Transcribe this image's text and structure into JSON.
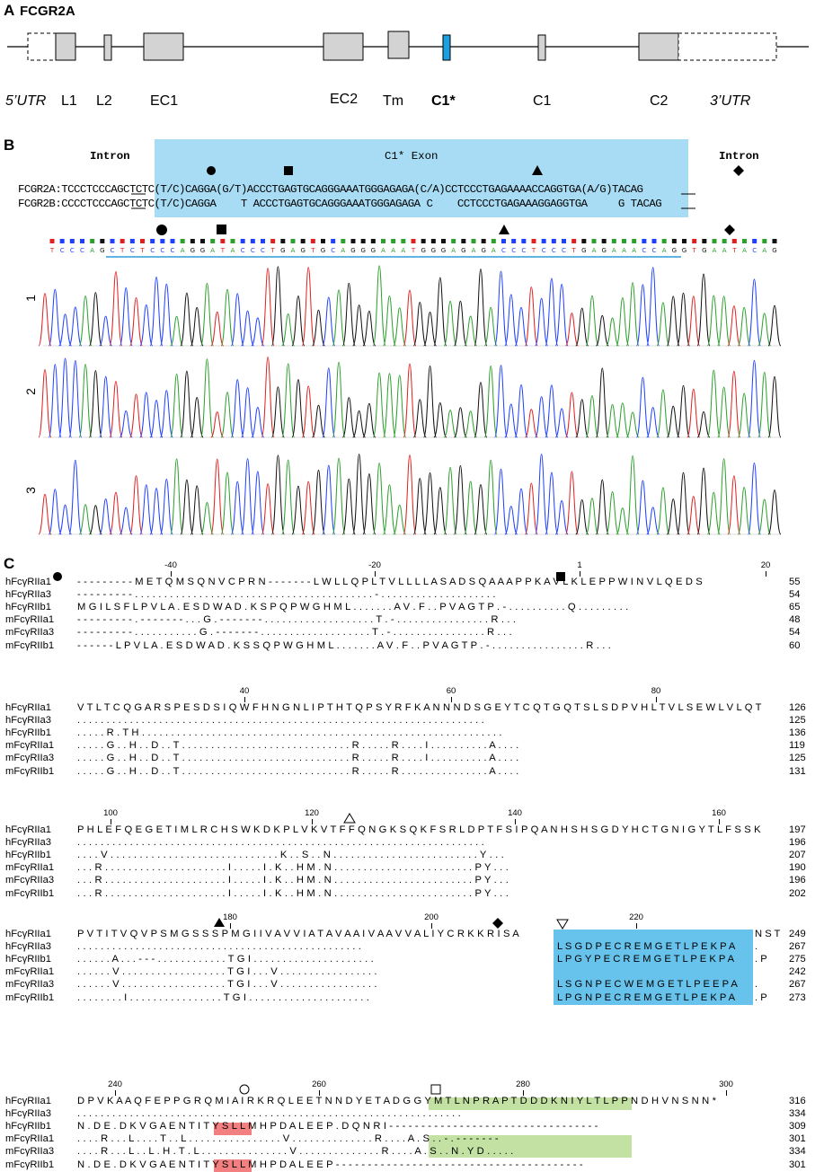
{
  "panelA": {
    "letter": "A",
    "gene": "FCGR2A",
    "labels": [
      {
        "text": "5’UTR",
        "style": "italic"
      },
      {
        "text": "L1",
        "style": "normal"
      },
      {
        "text": "L2",
        "style": "normal"
      },
      {
        "text": "EC1",
        "style": "normal"
      },
      {
        "text": "EC2",
        "style": "normal"
      },
      {
        "text": "Tm",
        "style": "normal"
      },
      {
        "text": "C1*",
        "style": "bold"
      },
      {
        "text": "C1",
        "style": "normal"
      },
      {
        "text": "C2",
        "style": "normal"
      },
      {
        "text": "3’UTR",
        "style": "italic"
      }
    ],
    "colors": {
      "exon_fill": "#d3d3d3",
      "c1star_fill": "#1e9fe0"
    }
  },
  "panelB": {
    "letter": "B",
    "intron_left": "Intron",
    "intron_right": "Intron",
    "exon_title": "C1* Exon",
    "row_a": "FCGR2A:TCCCTCCCAGCTCTC(T/C)CAGGA(G/T)ACCCTGAGTGCAGGGAAATGGGAGAGA(C/A)CCTCCCTGAGAAAACCAGGTGA(A/G)TACAG",
    "row_b": "FCGR2B:CCCCTCCCAGCTCTC(T/C)CAGGA    T ACCCTGAGTGCAGGGAAATGGGAGAGA C    CCTCCCTGAGAAAGGAGGTGA     G TACAG",
    "trace_bases": "TCCCAGCTCTCCCAGGATACCCTGAGTGCAGGGAAATGGGAGAGACCCTCCCTGAGAAACCAGGTGAATACAG",
    "trace_labels": [
      "1",
      "2",
      "3"
    ],
    "colors": {
      "exon_band": "#a8dcf4",
      "A": "#2ca02c",
      "C": "#1f3fff",
      "G": "#111111",
      "T": "#e02020"
    }
  },
  "panelC": {
    "letter": "C",
    "blocks": [
      {
        "ruler": [
          {
            "label": "-40"
          },
          {
            "label": "-20"
          },
          {
            "label": "1"
          },
          {
            "label": "20"
          }
        ],
        "rows": [
          {
            "name": "hFcγRIIa1",
            "seq": "- - - - - - - - - M  E T Q M S Q N V C P  R N - - - - - - - L  W L L Q P L T V L L  L L A S A D S Q A A  A P P K A V L K L E  P P W I N V L Q E D  S",
            "end": "55"
          },
          {
            "name": "hFcγRIIa3",
            "seq": "- - - - - - - - - .  . . . . . . . . . .  . . . . . . . . . .  . . . . . . . . . .  . . . . . . . . . .  - . . . . . . . . .  . . . . . . . . . .  .",
            "end": "54"
          },
          {
            "name": "hFcγRIIb1",
            "seq": "M G I L S F L P V L  A . E S D W A D . K  S P Q P W G H M L .  . . . . . . A V .  F . . P V A G T P .  - . . . . . . . . .  . Q . . . . . . . .  .",
            "end": "65"
          },
          {
            "name": "mFcγRIIa1",
            "seq": "- - - - - - - - - .  - - - - - - - . . .  G . - - - - - - - .  . . . . . . . . . .  . . . . . . . . T .  - . . . . . . . . .  . . . . . . . R . .  .",
            "end": "48"
          },
          {
            "name": "mFcγRIIa3",
            "seq": "- - - - - - - - - .  . . . . . . . . . .  G . - - - - - - - .  . . . . . . . . . .  . . . . . . . . T .  - . . . . . . . . .  . . . . . . . R . .  .",
            "end": "54"
          },
          {
            "name": "mFcγRIIb1",
            "seq": "- - - - - - L P V L  A . E S D W A D . K  S S Q P W G H M L .  . . . . . . A V .  F . . P V A G T P .  - . . . . . . . . .  . . . . . . . R . .  .",
            "end": "60"
          }
        ]
      },
      {
        "ruler": [
          {
            "label": "40"
          },
          {
            "label": "60"
          },
          {
            "label": "80"
          }
        ],
        "rows": [
          {
            "name": "hFcγRIIa1",
            "seq": "V T L T C Q G A R S  P E S D S I Q W F H  N G N L I P T H T Q  P S Y R F K A N N N  D S G E Y T C Q T G  Q T S L S D P V H L  T V L S E W L V L Q  T",
            "end": "126"
          },
          {
            "name": "hFcγRIIa3",
            "seq": ". . . . . . . . . .  . . . . . . . . . .  . . . . . . . . . .  . . . . . . . . . .  . . . . . . . . . .  . . . . . . . . . .  . . . . . . . . . .",
            "end": "125"
          },
          {
            "name": "hFcγRIIb1",
            "seq": ". . . . . R . T H .  . . . . . . . . . .  . . . . . . . . . .  . . . . . . . . . .  . . . . . . . . . .  . . . . . . . . . .  . . . . . . . . . .  .",
            "end": "136"
          },
          {
            "name": "mFcγRIIa1",
            "seq": ". . . . . G . . H .  . D . . T . . . . .  . . . . . . . . . .  . . . . . . . . . .  . . . . R . . . . .  R . . . . I . . . .  . . . . . . A . . .  .",
            "end": "119"
          },
          {
            "name": "mFcγRIIa3",
            "seq": ". . . . . G . . H .  . D . . T . . . . .  . . . . . . . . . .  . . . . . . . . . .  . . . . R . . . . .  R . . . . I . . . .  . . . . . . A . . .  .",
            "end": "125"
          },
          {
            "name": "mFcγRIIb1",
            "seq": ". . . . . G . . H .  . D . . T . . . . .  . . . . . . . . . .  . . . . . . . . . .  . . . . R . . . . .  R . . . . . . . . .  . . . . . . A . . .  .",
            "end": "131"
          }
        ]
      },
      {
        "ruler": [
          {
            "label": "100"
          },
          {
            "label": "120"
          },
          {
            "label": "140"
          },
          {
            "label": "160"
          }
        ],
        "rows": [
          {
            "name": "hFcγRIIa1",
            "seq": "P H L E F Q E G E T  I M L R C H S W K D  K P L V K V T F F Q  N G K S Q K F S R L  D P T F S I P Q A N  H S H S G D Y H C T  G N I G Y T L F S S  K",
            "end": "197"
          },
          {
            "name": "hFcγRIIa3",
            "seq": ". . . . . . . . . .  . . . . . . . . . .  . . . . . . . . . .  . . . . . . . . . .  . . . . . . . . . .  . . . . . . . . . .  . . . . . . . . . .",
            "end": "196"
          },
          {
            "name": "hFcγRIIb1",
            "seq": ". . . . V . . . . .  . . . . . . . . . .  . . . . . . . . . .  . . . . K . . S .  . N . . . . . . . .  . . . . . . . . . .  . . . . . . . Y . .  .",
            "end": "207"
          },
          {
            "name": "mFcγRIIa1",
            "seq": ". . . R . . . . . .  . . . . . . . . . .  . . . . . I . . . .  . I . K . . H M  . N . . . . . . . .  . . . . . . . . . .  . . . . . . P Y . .  .",
            "end": "190"
          },
          {
            "name": "mFcγRIIa3",
            "seq": ". . . R . . . . . .  . . . . . . . . . .  . . . . . I . . . .  . I . K . . H M  . N . . . . . . . .  . . . . . . . . . .  . . . . . . P Y . .  .",
            "end": "196"
          },
          {
            "name": "mFcγRIIb1",
            "seq": ". . . R . . . . . .  . . . . . . . . . .  . . . . . I . . . .  . I . K . . H M  . N . . . . . . . .  . . . . . . . . . .  . . . . . . P Y . .  .",
            "end": "202"
          }
        ]
      },
      {
        "ruler": [
          {
            "label": "180"
          },
          {
            "label": "200"
          },
          {
            "label": "220"
          }
        ],
        "rows": [
          {
            "name": "hFcγRIIa1",
            "seq": "P V T I T V Q V P S  M G S S S P M G I I  V A V V I A T A V A  A I V A A V V A L I  Y C R K K R I S A",
            "tail": "N S  T",
            "end": "249"
          },
          {
            "name": "hFcγRIIa3",
            "seq": ". . . . . . . . . .  . . . . . . . . . .  . . . . . . . . . .  . . . . . . . . . .  . . . . . . . . .",
            "blue": "L S G D P E C R E M G  E T L P E K P A",
            "tail": ".",
            "end": "267"
          },
          {
            "name": "hFcγRIIb1",
            "seq": ". . . . . . A . . .  - - - . . . . . . .  . . . . . T G I . .  . . . . . . . . . .  . . . . . . . . .",
            "blue": "L P G Y P E C R E M G  E T L P E K P A",
            "tail": ". P",
            "end": "275"
          },
          {
            "name": "mFcγRIIa1",
            "seq": ". . . . . . V . . .  . . . . . . . . . .  . . . . . T G I . .  . V . . . . . . . .  . . . . . . . . .",
            "tail": "",
            "end": "242"
          },
          {
            "name": "mFcγRIIa3",
            "seq": ". . . . . . V . . .  . . . . . . . . . .  . . . . . T G I . .  . V . . . . . . . .  . . . . . . . . .",
            "blue": "L S G N P E C W E M G  E T L P E E P A",
            "tail": ".",
            "end": "267"
          },
          {
            "name": "mFcγRIIb1",
            "seq": ". . . . . . . . I .  . . . . . . . . . .  . . . . . T G I . .  . . . . . . . . . .  . . . . . . . . .",
            "blue": "L P G N P E C R E M G  E T L P E K P A",
            "tail": ". P",
            "end": "273"
          }
        ]
      },
      {
        "ruler": [
          {
            "label": "240"
          },
          {
            "label": "260"
          },
          {
            "label": "280"
          },
          {
            "label": "300"
          }
        ],
        "rows": [
          {
            "name": "hFcγRIIa1",
            "seq": "D P V K A A Q F E P  P G R Q M I A I R K  R Q L E E T N N D Y  E T A D G G Y M T L  N P R A P T D D D K  N I Y L T L P P N D  H V N S N N *",
            "end": "316"
          },
          {
            "name": "hFcγRIIa3",
            "seq": ". . . . . . . . . .  . . . . . . . . . .  . . . . . . . . . .  . . . . . . . . . .  . . . . . . . . . .  . . . . . . . . . .  . . . . . .",
            "end": "334"
          },
          {
            "name": "hFcγRIIb1",
            "seq": "N . D E . D K V G A  E N T I T Y S L L M  H P D A L E E P . D  Q N R I - - - - - -  - - - - - - - - - -  - - - - - - - - - -  - - - - - - -",
            "end": "309"
          },
          {
            "name": "mFcγRIIa1",
            "seq": ". . . . R . . . L .  . . . T . . L . . .  . . . . . . . . . .  . . . V . . . . . .  . . . . . . . . R .  . . . A . S . . - .  - - - - - - -",
            "end": "301"
          },
          {
            "name": "mFcγRIIa3",
            "seq": ". . . . R . . . L .  . L . H . T . L . .  . . . . . . . . . .  . . . V . . . . . .  . . . . . . . . R .  . . . A . S . . N .  Y D . . . . .",
            "end": "334"
          },
          {
            "name": "mFcγRIIb1",
            "seq": "N . D E . D K V G A  E N T I T Y S L L M  H P D A L E E P - -  - - - - - - - - - -  - - - - - - - - - -  - - - - - - - - - -  - - - - - - -",
            "end": "301"
          }
        ]
      }
    ],
    "colors": {
      "blue": "#67c3eb",
      "green": "#c3e1a2",
      "red": "#f28080"
    }
  }
}
